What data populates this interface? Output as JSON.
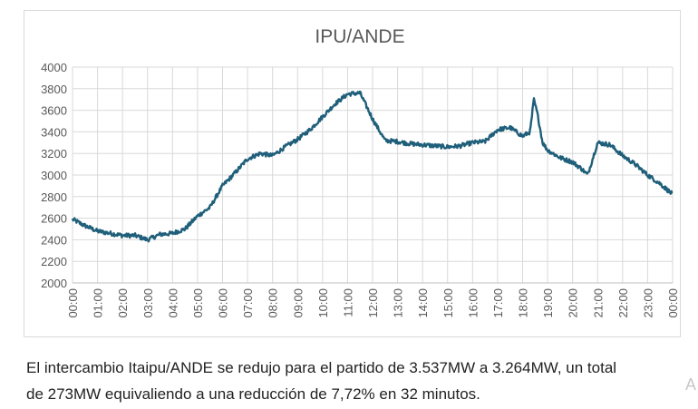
{
  "chart_data": {
    "type": "line",
    "title": "IPU/ANDE",
    "xlabel": "",
    "ylabel": "",
    "ylim": [
      2000,
      4000
    ],
    "yticks": [
      2000,
      2200,
      2400,
      2600,
      2800,
      3000,
      3200,
      3400,
      3600,
      3800,
      4000
    ],
    "x_tick_labels": [
      "00:00",
      "01:00",
      "02:00",
      "03:00",
      "04:00",
      "05:00",
      "06:00",
      "07:00",
      "08:00",
      "09:00",
      "10:00",
      "11:00",
      "12:00",
      "13:00",
      "14:00",
      "15:00",
      "16:00",
      "17:00",
      "18:00",
      "19:00",
      "20:00",
      "21:00",
      "22:00",
      "23:00",
      "00:00"
    ],
    "grid": true,
    "legend": "none",
    "series": [
      {
        "color": "#1f5f7a",
        "x_hours": [
          0,
          0.5,
          1,
          1.5,
          2,
          2.5,
          3,
          3.5,
          4,
          4.5,
          5,
          5.5,
          6,
          6.5,
          7,
          7.5,
          8,
          8.5,
          9,
          9.5,
          10,
          10.5,
          11,
          11.5,
          12,
          12.5,
          13,
          13.5,
          14,
          14.5,
          15,
          15.5,
          16,
          16.5,
          17,
          17.5,
          18,
          18.3,
          18.45,
          18.6,
          18.8,
          19,
          19.5,
          20,
          20.4,
          20.6,
          20.8,
          21,
          21.5,
          22,
          22.5,
          23,
          23.5,
          24
        ],
        "values": [
          2590,
          2530,
          2480,
          2460,
          2440,
          2440,
          2400,
          2450,
          2460,
          2500,
          2620,
          2700,
          2900,
          3020,
          3150,
          3200,
          3180,
          3260,
          3330,
          3420,
          3540,
          3660,
          3750,
          3760,
          3520,
          3320,
          3310,
          3290,
          3280,
          3270,
          3260,
          3270,
          3300,
          3310,
          3420,
          3440,
          3360,
          3400,
          3700,
          3560,
          3300,
          3230,
          3160,
          3120,
          3050,
          3000,
          3150,
          3300,
          3280,
          3180,
          3100,
          3000,
          2920,
          2820
        ]
      }
    ]
  },
  "caption": {
    "line1": "El intercambio Itaipu/ANDE se redujo para el partido de 3.537MW a 3.264MW, un total",
    "line2": "de 273MW equivaliendo a una reducción de 7,72% en 32 minutos."
  },
  "watermark": "A"
}
